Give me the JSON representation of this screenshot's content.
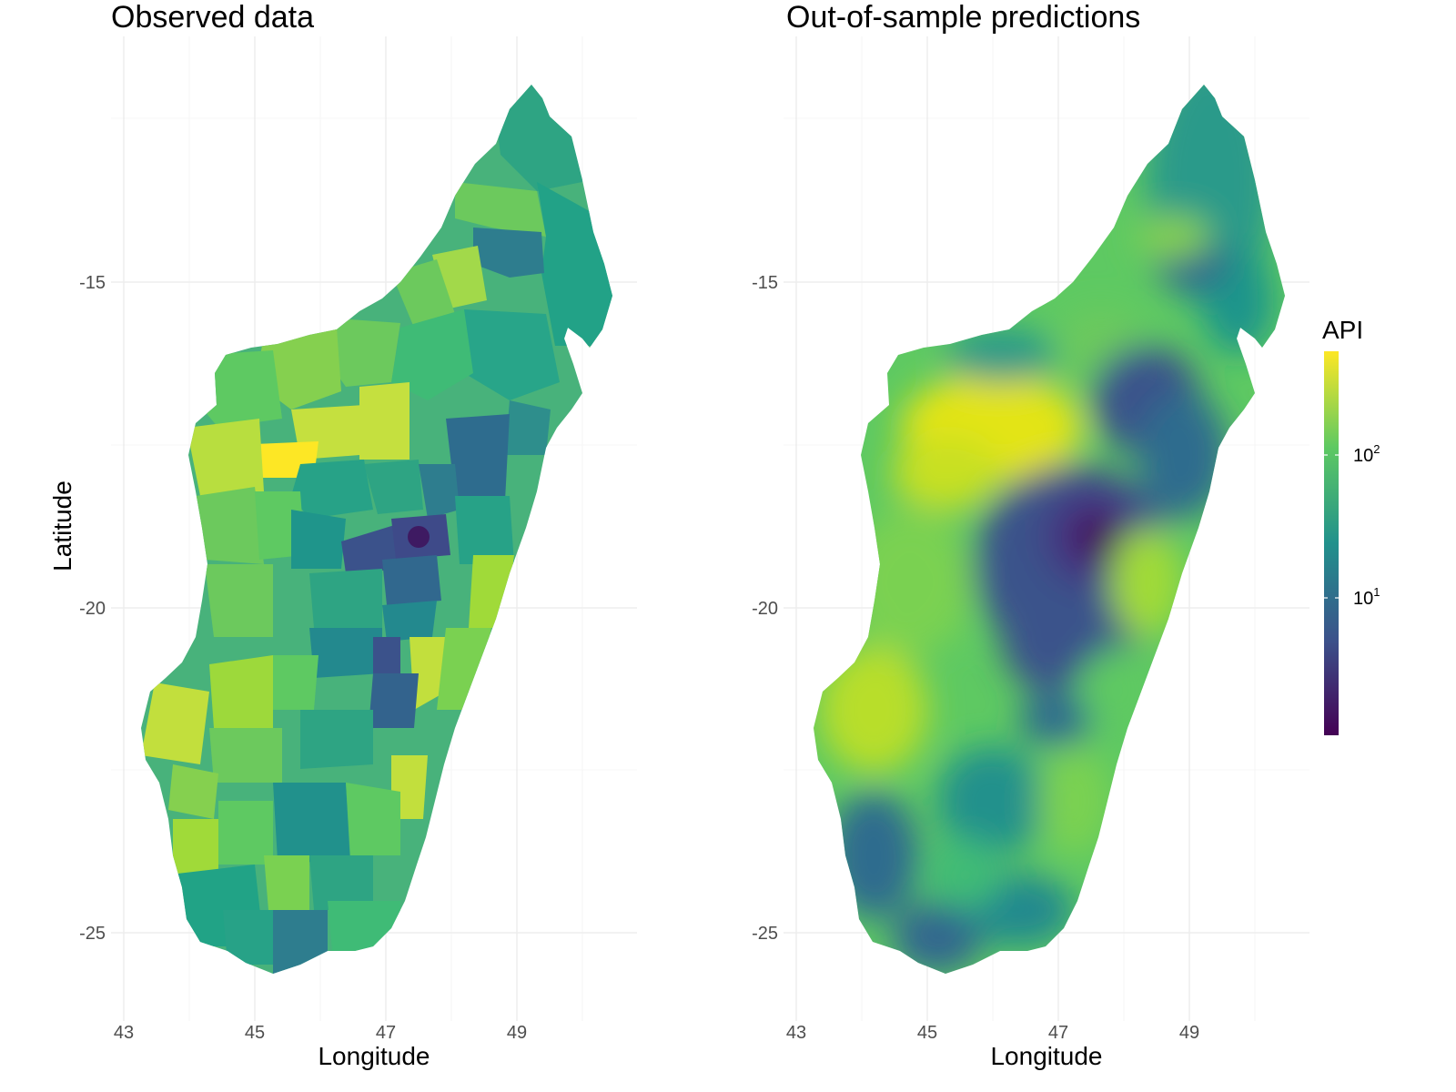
{
  "panels": [
    {
      "title": "Observed data",
      "xlabel": "Longitude",
      "ylabel": "Latitude",
      "x_ticks": [
        "43",
        "45",
        "47",
        "49"
      ],
      "y_ticks": [
        "-15",
        "-20",
        "-25"
      ]
    },
    {
      "title": "Out-of-sample predictions",
      "xlabel": "Longitude",
      "ylabel": "",
      "x_ticks": [
        "43",
        "45",
        "47",
        "49"
      ],
      "y_ticks": [
        "-15",
        "-20",
        "-25"
      ]
    }
  ],
  "legend": {
    "title": "API",
    "ticks": [
      {
        "base": "10",
        "exp": "2"
      },
      {
        "base": "10",
        "exp": "1"
      }
    ],
    "colors": [
      "#440154",
      "#3b528b",
      "#21918c",
      "#5ec962",
      "#fde725"
    ]
  },
  "map": {
    "x_range": [
      42.95,
      50.9
    ],
    "y_range": [
      -25.95,
      -11.8
    ],
    "region_shown": "Madagascar"
  },
  "chart_data": {
    "type": "heatmap",
    "subject": "Madagascar",
    "fill_scale": "log10",
    "colormap": "viridis"
  }
}
